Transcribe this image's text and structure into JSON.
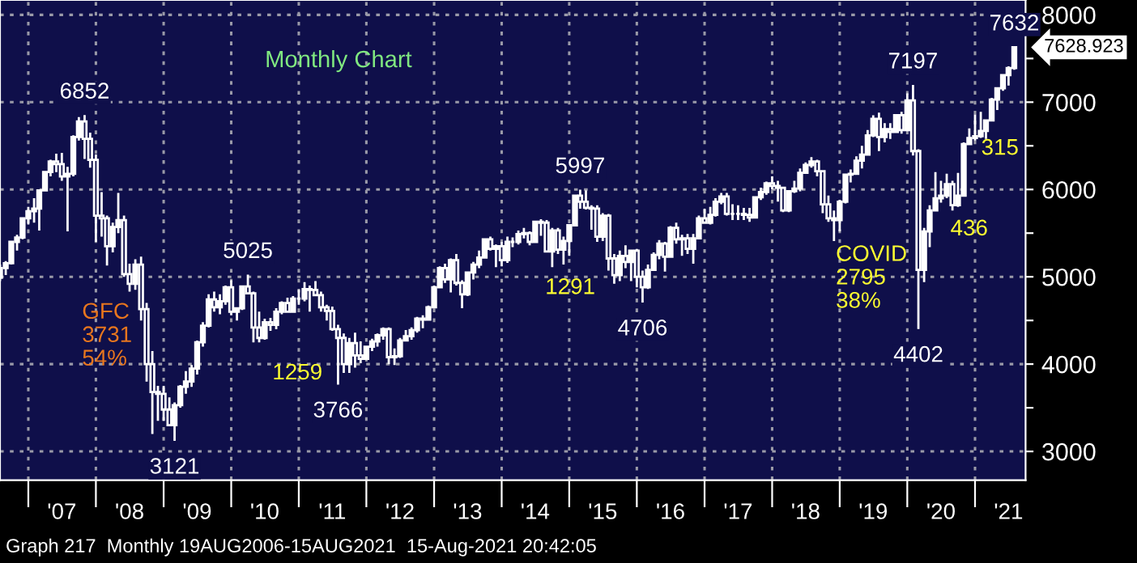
{
  "chart_data": {
    "type": "candlestick",
    "title": "Monthly Chart",
    "x": [
      "2006-08",
      "2006-09",
      "2006-10",
      "2006-11",
      "2006-12",
      "2007-01",
      "2007-02",
      "2007-03",
      "2007-04",
      "2007-05",
      "2007-06",
      "2007-07",
      "2007-08",
      "2007-09",
      "2007-10",
      "2007-11",
      "2007-12",
      "2008-01",
      "2008-02",
      "2008-03",
      "2008-04",
      "2008-05",
      "2008-06",
      "2008-07",
      "2008-08",
      "2008-09",
      "2008-10",
      "2008-11",
      "2008-12",
      "2009-01",
      "2009-02",
      "2009-03",
      "2009-04",
      "2009-05",
      "2009-06",
      "2009-07",
      "2009-08",
      "2009-09",
      "2009-10",
      "2009-11",
      "2009-12",
      "2010-01",
      "2010-02",
      "2010-03",
      "2010-04",
      "2010-05",
      "2010-06",
      "2010-07",
      "2010-08",
      "2010-09",
      "2010-10",
      "2010-11",
      "2010-12",
      "2011-01",
      "2011-02",
      "2011-03",
      "2011-04",
      "2011-05",
      "2011-06",
      "2011-07",
      "2011-08",
      "2011-09",
      "2011-10",
      "2011-11",
      "2011-12",
      "2012-01",
      "2012-02",
      "2012-03",
      "2012-04",
      "2012-05",
      "2012-06",
      "2012-07",
      "2012-08",
      "2012-09",
      "2012-10",
      "2012-11",
      "2012-12",
      "2013-01",
      "2013-02",
      "2013-03",
      "2013-04",
      "2013-05",
      "2013-06",
      "2013-07",
      "2013-08",
      "2013-09",
      "2013-10",
      "2013-11",
      "2013-12",
      "2014-01",
      "2014-02",
      "2014-03",
      "2014-04",
      "2014-05",
      "2014-06",
      "2014-07",
      "2014-08",
      "2014-09",
      "2014-10",
      "2014-11",
      "2014-12",
      "2015-01",
      "2015-02",
      "2015-03",
      "2015-04",
      "2015-05",
      "2015-06",
      "2015-07",
      "2015-08",
      "2015-09",
      "2015-10",
      "2015-11",
      "2015-12",
      "2016-01",
      "2016-02",
      "2016-03",
      "2016-04",
      "2016-05",
      "2016-06",
      "2016-07",
      "2016-08",
      "2016-09",
      "2016-10",
      "2016-11",
      "2016-12",
      "2017-01",
      "2017-02",
      "2017-03",
      "2017-04",
      "2017-05",
      "2017-06",
      "2017-07",
      "2017-08",
      "2017-09",
      "2017-10",
      "2017-11",
      "2017-12",
      "2018-01",
      "2018-02",
      "2018-03",
      "2018-04",
      "2018-05",
      "2018-06",
      "2018-07",
      "2018-08",
      "2018-09",
      "2018-10",
      "2018-11",
      "2018-12",
      "2019-01",
      "2019-02",
      "2019-03",
      "2019-04",
      "2019-05",
      "2019-06",
      "2019-07",
      "2019-08",
      "2019-09",
      "2019-10",
      "2019-11",
      "2019-12",
      "2020-01",
      "2020-02",
      "2020-03",
      "2020-04",
      "2020-05",
      "2020-06",
      "2020-07",
      "2020-08",
      "2020-09",
      "2020-10",
      "2020-11",
      "2020-12",
      "2021-01",
      "2021-02",
      "2021-03",
      "2021-04",
      "2021-05",
      "2021-06",
      "2021-07",
      "2021-08"
    ],
    "ohlc": [
      [
        4990,
        5140,
        4950,
        5100
      ],
      [
        5100,
        5180,
        5020,
        5155
      ],
      [
        5155,
        5410,
        5140,
        5400
      ],
      [
        5400,
        5480,
        5300,
        5450
      ],
      [
        5450,
        5680,
        5430,
        5670
      ],
      [
        5670,
        5800,
        5600,
        5750
      ],
      [
        5750,
        5900,
        5620,
        5780
      ],
      [
        5780,
        6000,
        5530,
        5990
      ],
      [
        5990,
        6210,
        5980,
        6200
      ],
      [
        6200,
        6340,
        6150,
        6320
      ],
      [
        6320,
        6410,
        6200,
        6290
      ],
      [
        6290,
        6420,
        6100,
        6150
      ],
      [
        6150,
        6260,
        5520,
        6180
      ],
      [
        6180,
        6620,
        6150,
        6600
      ],
      [
        6600,
        6830,
        6560,
        6780
      ],
      [
        6780,
        6852,
        6350,
        6580
      ],
      [
        6580,
        6650,
        6250,
        6340
      ],
      [
        6340,
        6400,
        5400,
        5700
      ],
      [
        5700,
        5970,
        5460,
        5670
      ],
      [
        5670,
        5700,
        5130,
        5350
      ],
      [
        5350,
        5620,
        5280,
        5570
      ],
      [
        5570,
        5960,
        5500,
        5650
      ],
      [
        5650,
        5700,
        5000,
        5030
      ],
      [
        5030,
        5150,
        4830,
        4920
      ],
      [
        4920,
        5200,
        4850,
        5140
      ],
      [
        5140,
        5230,
        4500,
        4630
      ],
      [
        4630,
        4700,
        3800,
        4000
      ],
      [
        4000,
        4150,
        3200,
        3680
      ],
      [
        3680,
        3750,
        3350,
        3660
      ],
      [
        3660,
        3750,
        3350,
        3480
      ],
      [
        3480,
        3620,
        3290,
        3300
      ],
      [
        3300,
        3560,
        3121,
        3530
      ],
      [
        3530,
        3760,
        3500,
        3740
      ],
      [
        3740,
        3920,
        3660,
        3800
      ],
      [
        3800,
        3990,
        3740,
        3950
      ],
      [
        3950,
        4270,
        3880,
        4250
      ],
      [
        4250,
        4480,
        4200,
        4440
      ],
      [
        4440,
        4800,
        4420,
        4740
      ],
      [
        4740,
        4830,
        4600,
        4650
      ],
      [
        4650,
        4800,
        4570,
        4720
      ],
      [
        4720,
        4900,
        4680,
        4880
      ],
      [
        4880,
        4960,
        4560,
        4600
      ],
      [
        4600,
        4650,
        4500,
        4640
      ],
      [
        4640,
        4900,
        4620,
        4890
      ],
      [
        4890,
        5025,
        4800,
        4810
      ],
      [
        4810,
        4830,
        4250,
        4420
      ],
      [
        4420,
        4600,
        4250,
        4300
      ],
      [
        4300,
        4520,
        4280,
        4480
      ],
      [
        4480,
        4530,
        4380,
        4450
      ],
      [
        4450,
        4640,
        4400,
        4600
      ],
      [
        4600,
        4720,
        4570,
        4700
      ],
      [
        4700,
        4760,
        4590,
        4600
      ],
      [
        4600,
        4780,
        4590,
        4750
      ],
      [
        4750,
        4850,
        4680,
        4750
      ],
      [
        4750,
        4940,
        4720,
        4860
      ],
      [
        4860,
        4900,
        4600,
        4850
      ],
      [
        4850,
        4950,
        4780,
        4790
      ],
      [
        4790,
        4830,
        4600,
        4650
      ],
      [
        4650,
        4680,
        4500,
        4610
      ],
      [
        4610,
        4660,
        4380,
        4400
      ],
      [
        4400,
        4450,
        3766,
        4300
      ],
      [
        4300,
        4350,
        3900,
        4000
      ],
      [
        4000,
        4300,
        3900,
        4240
      ],
      [
        4240,
        4360,
        3960,
        4100
      ],
      [
        4100,
        4260,
        4010,
        4060
      ],
      [
        4060,
        4210,
        4050,
        4200
      ],
      [
        4200,
        4290,
        4150,
        4260
      ],
      [
        4260,
        4350,
        4200,
        4330
      ],
      [
        4330,
        4420,
        4280,
        4400
      ],
      [
        4400,
        4420,
        4000,
        4080
      ],
      [
        4080,
        4180,
        3990,
        4090
      ],
      [
        4090,
        4300,
        4070,
        4270
      ],
      [
        4270,
        4390,
        4260,
        4320
      ],
      [
        4320,
        4420,
        4280,
        4390
      ],
      [
        4390,
        4540,
        4360,
        4520
      ],
      [
        4520,
        4560,
        4410,
        4510
      ],
      [
        4510,
        4670,
        4500,
        4650
      ],
      [
        4650,
        4900,
        4640,
        4880
      ],
      [
        4880,
        5120,
        4870,
        5100
      ],
      [
        5100,
        5150,
        4930,
        4970
      ],
      [
        4970,
        5210,
        4820,
        5190
      ],
      [
        5190,
        5260,
        4900,
        4930
      ],
      [
        4930,
        4960,
        4640,
        4800
      ],
      [
        4800,
        5060,
        4780,
        5050
      ],
      [
        5050,
        5170,
        4970,
        5140
      ],
      [
        5140,
        5300,
        5100,
        5220
      ],
      [
        5220,
        5440,
        5210,
        5430
      ],
      [
        5430,
        5460,
        5300,
        5320
      ],
      [
        5320,
        5370,
        5110,
        5350
      ],
      [
        5350,
        5400,
        5120,
        5190
      ],
      [
        5190,
        5460,
        5160,
        5400
      ],
      [
        5400,
        5450,
        5340,
        5400
      ],
      [
        5400,
        5530,
        5370,
        5490
      ],
      [
        5490,
        5560,
        5440,
        5500
      ],
      [
        5500,
        5520,
        5360,
        5400
      ],
      [
        5400,
        5640,
        5390,
        5630
      ],
      [
        5630,
        5660,
        5470,
        5620
      ],
      [
        5620,
        5650,
        5280,
        5290
      ],
      [
        5290,
        5560,
        5110,
        5530
      ],
      [
        5530,
        5560,
        5260,
        5310
      ],
      [
        5310,
        5460,
        5140,
        5410
      ],
      [
        5410,
        5600,
        5240,
        5590
      ],
      [
        5590,
        5940,
        5580,
        5930
      ],
      [
        5930,
        5997,
        5780,
        5860
      ],
      [
        5860,
        5990,
        5770,
        5790
      ],
      [
        5790,
        5820,
        5540,
        5780
      ],
      [
        5780,
        5820,
        5400,
        5460
      ],
      [
        5460,
        5730,
        5410,
        5700
      ],
      [
        5700,
        5720,
        5070,
        5210
      ],
      [
        5210,
        5260,
        4920,
        5020
      ],
      [
        5020,
        5300,
        4950,
        5240
      ],
      [
        5240,
        5360,
        5100,
        5170
      ],
      [
        5170,
        5310,
        4950,
        5300
      ],
      [
        5300,
        5320,
        4880,
        5000
      ],
      [
        5000,
        5070,
        4706,
        4880
      ],
      [
        4880,
        5140,
        4860,
        5080
      ],
      [
        5080,
        5280,
        5070,
        5250
      ],
      [
        5250,
        5420,
        5200,
        5380
      ],
      [
        5380,
        5400,
        5060,
        5230
      ],
      [
        5230,
        5580,
        5220,
        5560
      ],
      [
        5560,
        5620,
        5380,
        5430
      ],
      [
        5430,
        5480,
        5240,
        5440
      ],
      [
        5440,
        5490,
        5260,
        5320
      ],
      [
        5320,
        5490,
        5150,
        5440
      ],
      [
        5440,
        5700,
        5430,
        5670
      ],
      [
        5670,
        5780,
        5610,
        5620
      ],
      [
        5620,
        5800,
        5600,
        5710
      ],
      [
        5710,
        5900,
        5690,
        5860
      ],
      [
        5860,
        5960,
        5830,
        5920
      ],
      [
        5920,
        5960,
        5700,
        5720
      ],
      [
        5720,
        5830,
        5650,
        5720
      ],
      [
        5720,
        5820,
        5650,
        5720
      ],
      [
        5720,
        5790,
        5650,
        5710
      ],
      [
        5710,
        5790,
        5630,
        5680
      ],
      [
        5680,
        5920,
        5670,
        5910
      ],
      [
        5910,
        6020,
        5880,
        5970
      ],
      [
        5970,
        6090,
        5940,
        6070
      ],
      [
        6070,
        6150,
        6000,
        6040
      ],
      [
        6040,
        6100,
        5860,
        6020
      ],
      [
        6020,
        6030,
        5740,
        5760
      ],
      [
        5760,
        5990,
        5740,
        5980
      ],
      [
        5980,
        6100,
        5960,
        6010
      ],
      [
        6010,
        6240,
        5980,
        6190
      ],
      [
        6190,
        6310,
        6180,
        6280
      ],
      [
        6280,
        6370,
        6250,
        6320
      ],
      [
        6320,
        6340,
        6150,
        6210
      ],
      [
        6210,
        6220,
        5730,
        5830
      ],
      [
        5830,
        5930,
        5630,
        5670
      ],
      [
        5670,
        5760,
        5410,
        5650
      ],
      [
        5650,
        5880,
        5520,
        5860
      ],
      [
        5860,
        6180,
        5840,
        6170
      ],
      [
        6170,
        6230,
        6080,
        6180
      ],
      [
        6180,
        6380,
        6170,
        6330
      ],
      [
        6330,
        6500,
        6240,
        6400
      ],
      [
        6400,
        6680,
        6390,
        6620
      ],
      [
        6620,
        6850,
        6600,
        6810
      ],
      [
        6810,
        6880,
        6440,
        6600
      ],
      [
        6600,
        6760,
        6540,
        6690
      ],
      [
        6690,
        6760,
        6580,
        6660
      ],
      [
        6660,
        6860,
        6650,
        6850
      ],
      [
        6850,
        6890,
        6640,
        6680
      ],
      [
        6680,
        7100,
        6670,
        7020
      ],
      [
        7020,
        7197,
        6390,
        6440
      ],
      [
        6440,
        6460,
        4402,
        5080
      ],
      [
        5080,
        5560,
        4940,
        5520
      ],
      [
        5520,
        5820,
        5340,
        5760
      ],
      [
        5760,
        6200,
        5760,
        5900
      ],
      [
        5900,
        6100,
        5850,
        5930
      ],
      [
        5930,
        6180,
        5900,
        6060
      ],
      [
        6060,
        6100,
        5760,
        5820
      ],
      [
        5820,
        6190,
        5800,
        5930
      ],
      [
        5930,
        6540,
        5930,
        6520
      ],
      [
        6520,
        6700,
        6520,
        6590
      ],
      [
        6590,
        6860,
        6560,
        6610
      ],
      [
        6610,
        6890,
        6590,
        6670
      ],
      [
        6670,
        6800,
        6580,
        6790
      ],
      [
        6790,
        7050,
        6780,
        7030
      ],
      [
        7030,
        7170,
        6910,
        7160
      ],
      [
        7160,
        7320,
        7130,
        7310
      ],
      [
        7310,
        7410,
        7190,
        7390
      ],
      [
        7390,
        7632,
        7370,
        7629
      ]
    ],
    "color": "#ffffff",
    "xlim": [
      "2006-08",
      "2021-10"
    ],
    "xticks": [
      {
        "value": "2007-01",
        "label": null
      },
      {
        "value": "2007-07",
        "label": "'07"
      },
      {
        "value": "2008-01",
        "label": null
      },
      {
        "value": "2008-07",
        "label": "'08"
      },
      {
        "value": "2009-01",
        "label": null
      },
      {
        "value": "2009-07",
        "label": "'09"
      },
      {
        "value": "2010-01",
        "label": null
      },
      {
        "value": "2010-07",
        "label": "'10"
      },
      {
        "value": "2011-01",
        "label": null
      },
      {
        "value": "2011-07",
        "label": "'11"
      },
      {
        "value": "2012-01",
        "label": null
      },
      {
        "value": "2012-07",
        "label": "'12"
      },
      {
        "value": "2013-01",
        "label": null
      },
      {
        "value": "2013-07",
        "label": "'13"
      },
      {
        "value": "2014-01",
        "label": null
      },
      {
        "value": "2014-07",
        "label": "'14"
      },
      {
        "value": "2015-01",
        "label": null
      },
      {
        "value": "2015-07",
        "label": "'15"
      },
      {
        "value": "2016-01",
        "label": null
      },
      {
        "value": "2016-07",
        "label": "'16"
      },
      {
        "value": "2017-01",
        "label": null
      },
      {
        "value": "2017-07",
        "label": "'17"
      },
      {
        "value": "2018-01",
        "label": null
      },
      {
        "value": "2018-07",
        "label": "'18"
      },
      {
        "value": "2019-01",
        "label": null
      },
      {
        "value": "2019-07",
        "label": "'19"
      },
      {
        "value": "2020-01",
        "label": null
      },
      {
        "value": "2020-07",
        "label": "'20"
      },
      {
        "value": "2021-01",
        "label": null
      },
      {
        "value": "2021-07",
        "label": "'21"
      }
    ],
    "ylim": [
      2670,
      8170
    ],
    "yticks": [
      3000,
      {
        "value": 3500,
        "label": null
      },
      4000,
      {
        "value": 4500,
        "label": null
      },
      5000,
      {
        "value": 5500,
        "label": null
      },
      6000,
      {
        "value": 6500,
        "label": null
      },
      7000,
      {
        "value": 7500,
        "label": null
      },
      8000
    ],
    "grid": true,
    "annotations": [
      {
        "text": "6852",
        "x": "2007-11",
        "y": 6852
      },
      {
        "text": "3121",
        "x": "2009-03",
        "y": 3121
      },
      {
        "text": "5025",
        "x": "2010-04",
        "y": 5025
      },
      {
        "text": "3766",
        "x": "2011-08",
        "y": 3766
      },
      {
        "text": "5997",
        "x": "2015-03",
        "y": 5997
      },
      {
        "text": "4706",
        "x": "2016-02",
        "y": 4706
      },
      {
        "text": "7197",
        "x": "2020-02",
        "y": 7197
      },
      {
        "text": "4402",
        "x": "2020-03",
        "y": 4402
      },
      {
        "text": "7632",
        "x": "2021-08",
        "y": 7632
      },
      {
        "text": "7628.923",
        "x": "2021-08",
        "y": 7628.923
      },
      "1259",
      "1291",
      "436",
      "315",
      "GFC\n3731\n54%",
      "COVID\n2795\n38%",
      "Graph 217  Monthly 19AUG2006-15AUG2021  15-Aug-2021 20:42:05"
    ]
  }
}
